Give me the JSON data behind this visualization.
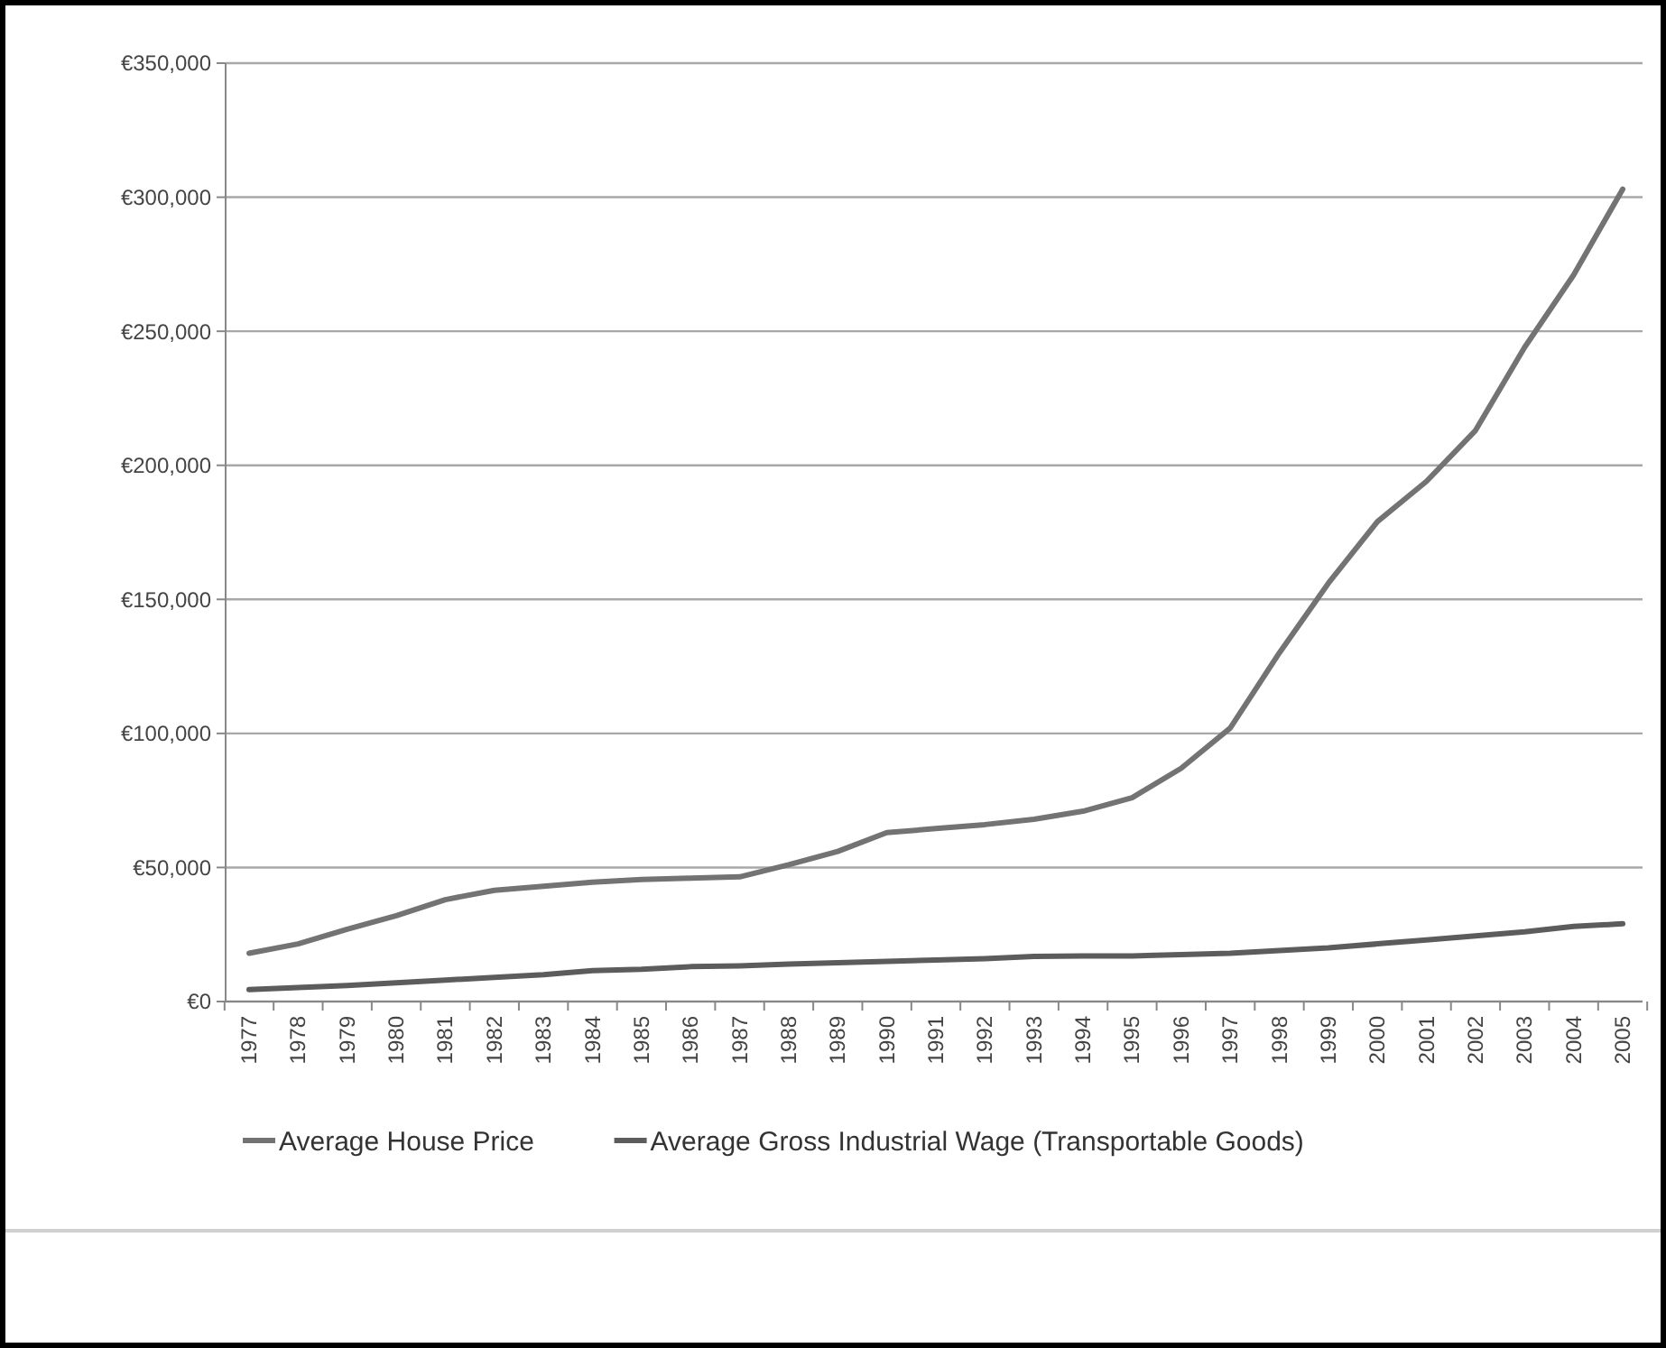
{
  "chart_data": {
    "type": "line",
    "categories": [
      "1977",
      "1978",
      "1979",
      "1980",
      "1981",
      "1982",
      "1983",
      "1984",
      "1985",
      "1986",
      "1987",
      "1988",
      "1989",
      "1990",
      "1991",
      "1992",
      "1993",
      "1994",
      "1995",
      "1996",
      "1997",
      "1998",
      "1999",
      "2000",
      "2001",
      "2002",
      "2003",
      "2004",
      "2005"
    ],
    "series": [
      {
        "name": "Average House Price",
        "color": "#737373",
        "values": [
          18000,
          21500,
          27000,
          32000,
          38000,
          41500,
          43000,
          44500,
          45500,
          46000,
          46500,
          51000,
          56000,
          63000,
          64500,
          66000,
          68000,
          71000,
          76000,
          87000,
          102000,
          130000,
          156000,
          179000,
          194000,
          213000,
          244000,
          271000,
          303000
        ]
      },
      {
        "name": "Average Gross Industrial Wage (Transportable Goods)",
        "color": "#5c5c5c",
        "values": [
          4500,
          5200,
          6000,
          7000,
          8000,
          9000,
          10000,
          11500,
          12000,
          13000,
          13300,
          14000,
          14500,
          15000,
          15500,
          16000,
          16800,
          17000,
          17000,
          17500,
          18000,
          19000,
          20000,
          21500,
          23000,
          24500,
          26000,
          28000,
          29000
        ]
      }
    ],
    "ylim": [
      0,
      350000
    ],
    "yticks": [
      {
        "value": 0,
        "label": "€0"
      },
      {
        "value": 50000,
        "label": "€50,000"
      },
      {
        "value": 100000,
        "label": "€100,000"
      },
      {
        "value": 150000,
        "label": "€150,000"
      },
      {
        "value": 200000,
        "label": "€200,000"
      },
      {
        "value": 250000,
        "label": "€250,000"
      },
      {
        "value": 300000,
        "label": "€300,000"
      },
      {
        "value": 350000,
        "label": "€350,000"
      }
    ],
    "grid": "y",
    "legend": "bottom",
    "marker": "none",
    "line_style": "solid"
  }
}
